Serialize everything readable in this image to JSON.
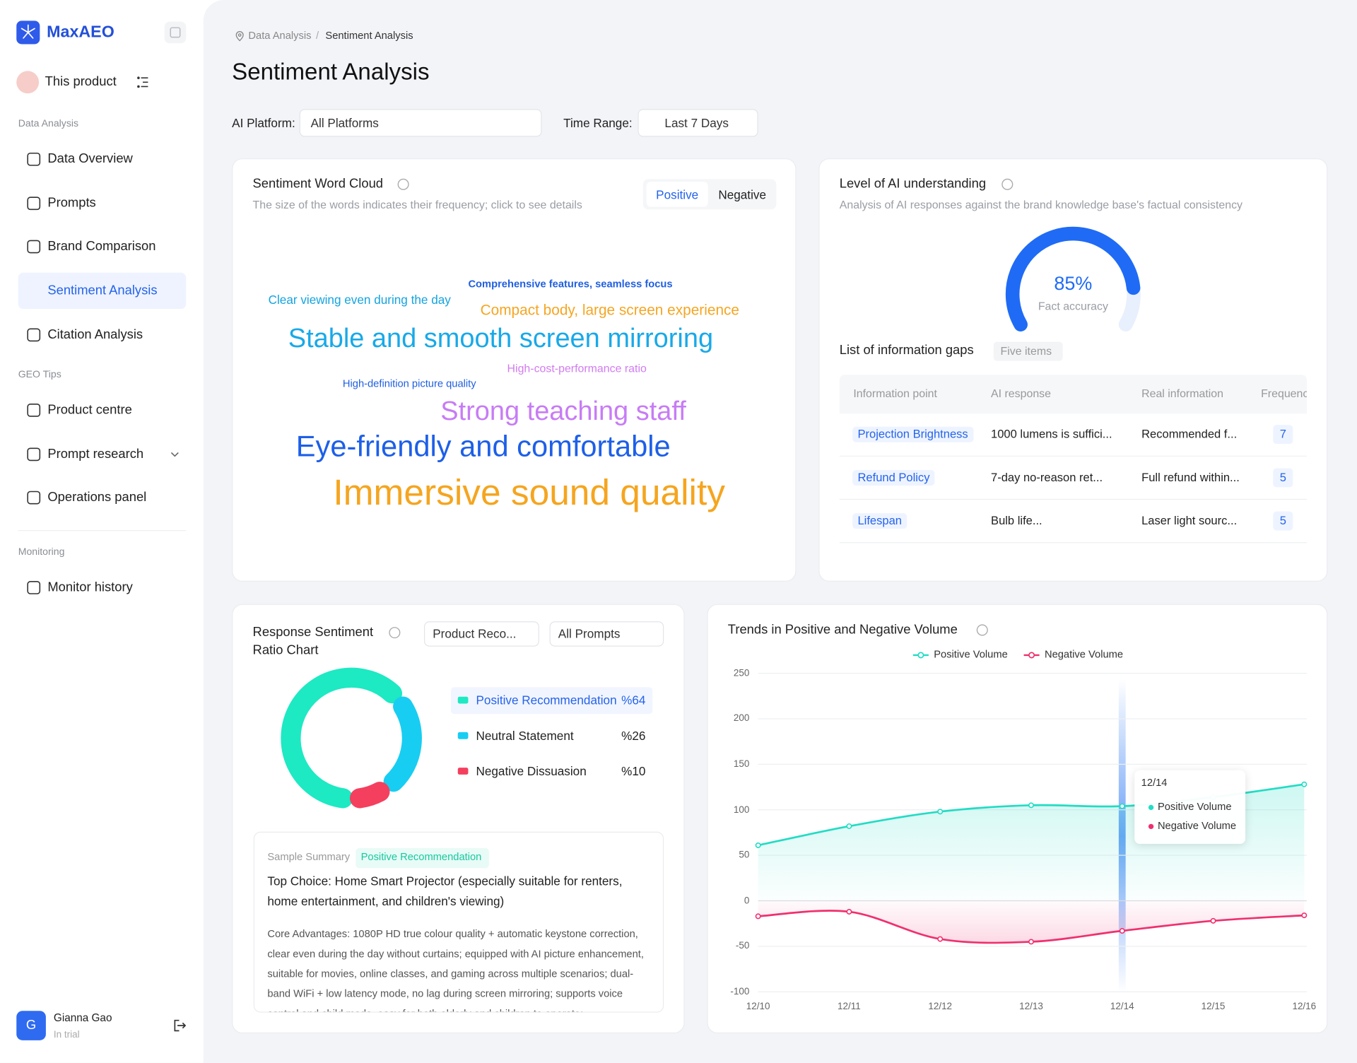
{
  "sidebar": {
    "brand": "MaxAEO",
    "product": "This product",
    "groups": [
      {
        "label": "Data Analysis",
        "items": [
          "Data Overview",
          "Prompts",
          "Brand Comparison",
          "Sentiment Analysis",
          "Citation Analysis"
        ]
      },
      {
        "label": "GEO Tips",
        "items": [
          "Product centre",
          "Prompt research",
          "Operations panel"
        ]
      },
      {
        "label": "Monitoring",
        "items": [
          "Monitor history"
        ]
      }
    ],
    "active": "Sentiment Analysis",
    "user": {
      "initial": "G",
      "name": "Gianna Gao",
      "status": "In trial"
    }
  },
  "breadcrumb": {
    "items": [
      "Data Analysis",
      "Sentiment Analysis"
    ],
    "separator": "/"
  },
  "title": "Sentiment Analysis",
  "filters": [
    {
      "label": "AI Platform:",
      "value": "All Platforms"
    },
    {
      "label": "Time Range:",
      "value": "Last 7 Days"
    }
  ],
  "word_cloud": {
    "title": "Sentiment Word Cloud",
    "subtitle": "The size of the words indicates their frequency; click to see details",
    "tabs": [
      "Positive",
      "Negative"
    ],
    "active_tab": "Positive",
    "words": [
      {
        "text": "Comprehensive features, seamless focus",
        "color": "#1f5fe0"
      },
      {
        "text": "Clear viewing even during the day",
        "color": "#14a3e0"
      },
      {
        "text": "Compact body, large screen experience",
        "color": "#f5a623"
      },
      {
        "text": "Stable and smooth screen mirroring",
        "color": "#18a9e8"
      },
      {
        "text": "High-cost-performance ratio",
        "color": "#d27bf0"
      },
      {
        "text": "High-definition picture quality",
        "color": "#1f5fe0"
      },
      {
        "text": "Strong teaching staff",
        "color": "#c77cf5"
      },
      {
        "text": "Eye-friendly and comfortable",
        "color": "#1d5fe8"
      },
      {
        "text": "Immersive sound quality",
        "color": "#f5a51f"
      }
    ]
  },
  "ai_understanding": {
    "title": "Level of AI understanding",
    "subtitle": "Analysis of AI responses against the brand knowledge base's factual consistency",
    "gauge": {
      "type": "gauge",
      "value": 85,
      "value_label": "85%",
      "label": "Fact accuracy",
      "ylim": [
        0,
        100
      ],
      "color": "#1f6bf5"
    },
    "gaps": {
      "title": "List of information gaps",
      "count_label": "Five items",
      "columns": [
        "Information point",
        "AI response",
        "Real information",
        "Frequency"
      ],
      "rows": [
        [
          "Projection Brightness",
          "1000 lumens is suffici...",
          "Recommended f...",
          7
        ],
        [
          "Refund Policy",
          "7-day no-reason ret...",
          "Full refund within...",
          5
        ],
        [
          "Lifespan",
          "Bulb life...",
          "Laser light sourc...",
          5
        ]
      ]
    }
  },
  "sentiment_ratio": {
    "type": "donut",
    "title": "Response Sentiment Ratio Chart",
    "selects": [
      "Product Reco...",
      "All Prompts"
    ],
    "categories": [
      "Positive Recommendation",
      "Neutral Statement",
      "Negative Dissuasion"
    ],
    "values": [
      64,
      26,
      10
    ],
    "value_labels": [
      "%64",
      "%26",
      "%10"
    ],
    "colors": [
      "#1de9c3",
      "#18cdf2",
      "#f43f5e"
    ],
    "summary": {
      "label": "Sample Summary",
      "tag": "Positive Recommendation",
      "heading": "Top Choice: Home Smart Projector (especially suitable for renters, home entertainment, and children's viewing)",
      "body": "Core Advantages: 1080P HD true colour quality + automatic keystone correction, clear even during the day without curtains; equipped with AI picture enhancement, suitable for movies, online classes, and gaming across multiple scenarios; dual-band WiFi + low latency mode, no lag during screen mirroring; supports voice control and child mode, easy for both elderly and children to operate;"
    }
  },
  "trend": {
    "type": "line",
    "title": "Trends in Positive and Negative Volume",
    "x": [
      "12/10",
      "12/11",
      "12/12",
      "12/13",
      "12/14",
      "12/15",
      "12/16"
    ],
    "series": [
      {
        "name": "Positive Volume",
        "color": "#22dcc4",
        "values": [
          61,
          82,
          98,
          105,
          104,
          114,
          128
        ]
      },
      {
        "name": "Negative Volume",
        "color": "#f0306e",
        "values": [
          -17,
          -12,
          -42,
          -45,
          -33,
          -22,
          -16
        ]
      }
    ],
    "ylim": [
      -100,
      250
    ],
    "yticks": [
      -100,
      -50,
      0,
      50,
      100,
      150,
      200,
      250
    ],
    "grid": true,
    "legend": "top",
    "tooltip": {
      "x": "12/14"
    }
  }
}
